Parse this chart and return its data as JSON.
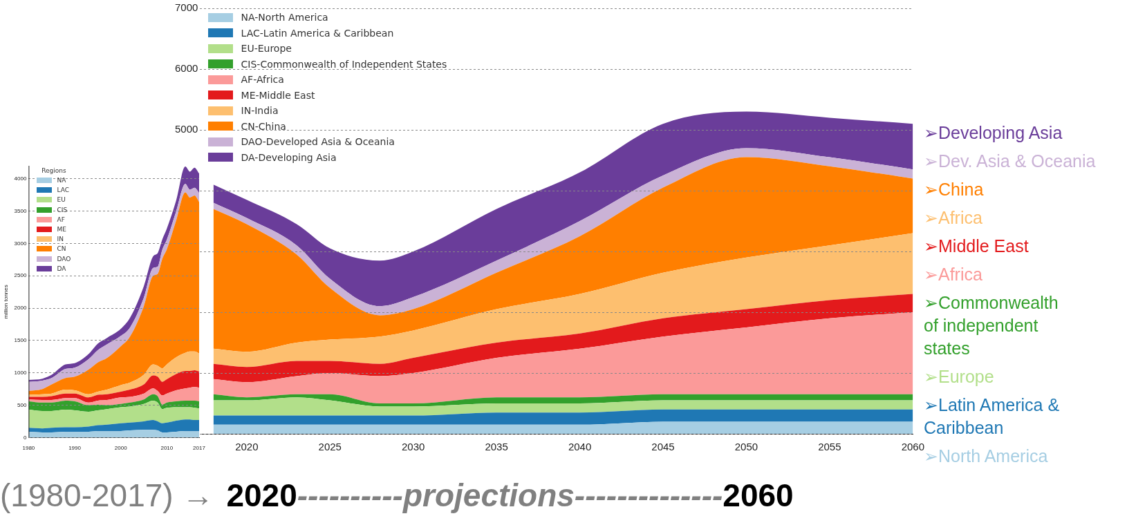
{
  "chart_data": [
    {
      "type": "area",
      "stacked": true,
      "legend": "top left",
      "legend_title": "Regions",
      "ylabel": "million tonnes",
      "grid": "y",
      "xlim": [
        1980,
        2017
      ],
      "xticks": [
        1980,
        1990,
        2000,
        2010,
        2017
      ],
      "ylim": [
        0,
        4200
      ],
      "yticks": [
        0,
        500,
        1000,
        1500,
        2000,
        2500,
        3000,
        3500,
        4000
      ],
      "x": [
        1980,
        1983,
        1985,
        1988,
        1990,
        1993,
        1995,
        1997,
        2000,
        2002,
        2005,
        2007,
        2008,
        2009,
        2010,
        2012,
        2014,
        2015,
        2016,
        2017
      ],
      "series": [
        {
          "name": "NA",
          "color": "#a6cee3",
          "values": [
            90,
            80,
            80,
            90,
            90,
            90,
            100,
            100,
            100,
            110,
            120,
            120,
            110,
            80,
            80,
            90,
            100,
            100,
            100,
            100
          ]
        },
        {
          "name": "LAC",
          "color": "#1f78b4",
          "values": [
            60,
            60,
            70,
            70,
            70,
            80,
            90,
            100,
            120,
            120,
            130,
            150,
            140,
            140,
            150,
            170,
            180,
            180,
            170,
            170
          ]
        },
        {
          "name": "EU",
          "color": "#b2df8a",
          "values": [
            280,
            270,
            260,
            270,
            260,
            230,
            230,
            240,
            250,
            250,
            270,
            300,
            290,
            220,
            230,
            210,
            190,
            190,
            190,
            180
          ]
        },
        {
          "name": "CIS",
          "color": "#33a02c",
          "values": [
            130,
            130,
            130,
            140,
            140,
            100,
            90,
            60,
            50,
            60,
            70,
            100,
            100,
            70,
            80,
            90,
            100,
            100,
            110,
            110
          ]
        },
        {
          "name": "AF",
          "color": "#fb9a99",
          "values": [
            30,
            40,
            40,
            40,
            50,
            40,
            60,
            80,
            100,
            90,
            90,
            90,
            80,
            140,
            140,
            170,
            190,
            200,
            210,
            210
          ]
        },
        {
          "name": "ME",
          "color": "#e31a1c",
          "values": [
            40,
            50,
            60,
            70,
            70,
            80,
            90,
            90,
            90,
            110,
            140,
            200,
            220,
            210,
            220,
            250,
            270,
            260,
            260,
            250
          ]
        },
        {
          "name": "IN",
          "color": "#fdbf6f",
          "values": [
            30,
            40,
            40,
            60,
            50,
            50,
            50,
            70,
            100,
            110,
            150,
            170,
            170,
            210,
            230,
            260,
            280,
            300,
            290,
            280
          ]
        },
        {
          "name": "CN",
          "color": "#ff7f00",
          "values": [
            60,
            80,
            140,
            180,
            210,
            380,
            450,
            490,
            600,
            710,
            1060,
            1370,
            1420,
            1690,
            1780,
            2110,
            2480,
            2380,
            2410,
            2340
          ]
        },
        {
          "name": "DAO",
          "color": "#cab2d6",
          "values": [
            140,
            130,
            100,
            140,
            140,
            160,
            190,
            210,
            160,
            140,
            130,
            120,
            110,
            140,
            150,
            140,
            130,
            120,
            120,
            140
          ]
        },
        {
          "name": "DA",
          "color": "#6a3d9a",
          "values": [
            30,
            30,
            50,
            70,
            70,
            80,
            100,
            100,
            110,
            150,
            180,
            180,
            210,
            160,
            170,
            170,
            270,
            280,
            310,
            300
          ]
        }
      ]
    },
    {
      "type": "area",
      "stacked": true,
      "legend": "top left",
      "grid": "y",
      "xlim": [
        2017.2,
        2060
      ],
      "xticks": [
        2020,
        2025,
        2030,
        2035,
        2040,
        2045,
        2050,
        2055,
        2060
      ],
      "ylim": [
        0,
        7000
      ],
      "yticks": [
        {
          "value": 0,
          "label": null
        },
        {
          "value": 1000,
          "label": null
        },
        {
          "value": 2000,
          "label": null
        },
        {
          "value": 3000,
          "label": null
        },
        {
          "value": 4000,
          "label": null
        },
        5000,
        6000,
        7000
      ],
      "x": [
        2018,
        2020,
        2023,
        2025,
        2028,
        2030,
        2035,
        2040,
        2045,
        2050,
        2055,
        2060
      ],
      "series": [
        {
          "name": "NA-North America",
          "color": "#a6cee3",
          "values": [
            150,
            150,
            150,
            150,
            150,
            150,
            150,
            150,
            200,
            200,
            200,
            200
          ]
        },
        {
          "name": "LAC-Latin America & Caribbean",
          "color": "#1f78b4",
          "values": [
            150,
            150,
            150,
            150,
            150,
            150,
            200,
            200,
            200,
            200,
            200,
            200
          ]
        },
        {
          "name": "EU-Europe",
          "color": "#b2df8a",
          "values": [
            250,
            250,
            300,
            250,
            150,
            150,
            150,
            150,
            150,
            150,
            150,
            150
          ]
        },
        {
          "name": "CIS-Commonwealth of Independent States",
          "color": "#33a02c",
          "values": [
            100,
            50,
            50,
            100,
            50,
            50,
            100,
            100,
            100,
            100,
            100,
            100
          ]
        },
        {
          "name": "AF-Africa",
          "color": "#fb9a99",
          "values": [
            250,
            250,
            300,
            350,
            450,
            500,
            650,
            800,
            950,
            1100,
            1250,
            1350
          ]
        },
        {
          "name": "ME-Middle East",
          "color": "#e31a1c",
          "values": [
            250,
            250,
            250,
            200,
            200,
            250,
            250,
            250,
            300,
            300,
            300,
            300
          ]
        },
        {
          "name": "IN-India",
          "color": "#fdbf6f",
          "values": [
            250,
            250,
            300,
            350,
            450,
            450,
            550,
            650,
            750,
            850,
            900,
            1000
          ]
        },
        {
          "name": "CN-China",
          "color": "#ff7f00",
          "values": [
            2300,
            2100,
            1450,
            850,
            350,
            350,
            600,
            950,
            1400,
            1650,
            1300,
            900
          ]
        },
        {
          "name": "DAO-Developed Asia & Oceania",
          "color": "#cab2d6",
          "values": [
            100,
            100,
            150,
            150,
            150,
            200,
            200,
            250,
            200,
            150,
            150,
            150
          ]
        },
        {
          "name": "DA-Developing Asia",
          "color": "#6a3d9a",
          "values": [
            300,
            300,
            350,
            500,
            750,
            750,
            850,
            800,
            850,
            600,
            650,
            750
          ]
        }
      ],
      "annotations": [
        "➢Developing Asia",
        "➢Dev. Asia & Oceania",
        "➢China",
        "➢Africa",
        "➢Middle East",
        "➢Africa",
        "➢Commonwealth\nof independent\nstates",
        "➢Europe",
        "➢Latin America &\nCaribbean",
        "➢North America"
      ]
    },
    {
      "type": "other",
      "annotations": [
        "(1980-2017) →",
        "2020",
        "----------projections--------------",
        "2060"
      ]
    }
  ]
}
